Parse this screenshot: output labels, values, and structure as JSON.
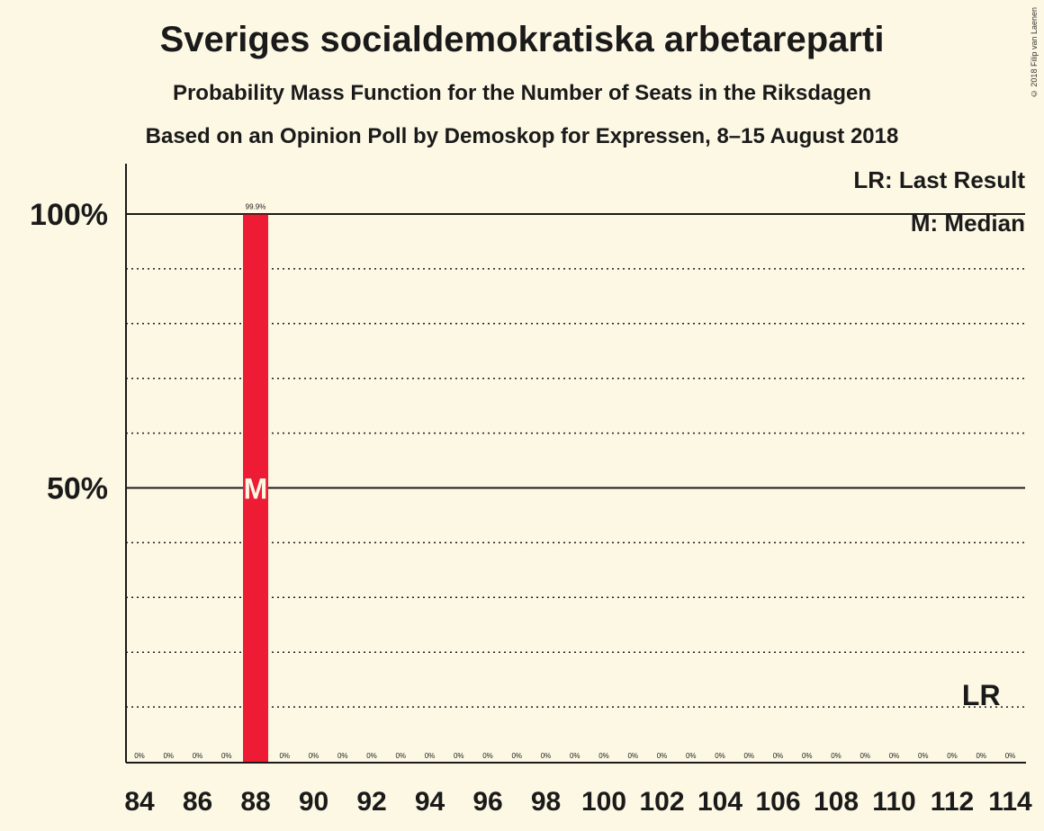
{
  "title": "Sveriges socialdemokratiska arbetareparti",
  "subtitle1": "Probability Mass Function for the Number of Seats in the Riksdagen",
  "subtitle2": "Based on an Opinion Poll by Demoskop for Expressen, 8–15 August 2018",
  "copyright": "© 2018 Filip van Laenen",
  "legend": {
    "last_result": "LR: Last Result",
    "median": "M: Median"
  },
  "colors": {
    "background": "#fdf8e4",
    "bar": "#ed1b34",
    "text": "#1a1a1a"
  },
  "chart_data": {
    "type": "bar",
    "xlabel": "",
    "ylabel": "",
    "ylim": [
      0,
      100
    ],
    "yticks": [
      {
        "value": 100,
        "label": "100%"
      },
      {
        "value": 50,
        "label": "50%"
      }
    ],
    "gridlines": [
      10,
      20,
      30,
      40,
      60,
      70,
      80,
      90
    ],
    "x_tick_labels": [
      "84",
      "86",
      "88",
      "90",
      "92",
      "94",
      "96",
      "98",
      "100",
      "102",
      "104",
      "106",
      "108",
      "110",
      "112",
      "114"
    ],
    "categories": [
      84,
      85,
      86,
      87,
      88,
      89,
      90,
      91,
      92,
      93,
      94,
      95,
      96,
      97,
      98,
      99,
      100,
      101,
      102,
      103,
      104,
      105,
      106,
      107,
      108,
      109,
      110,
      111,
      112,
      113,
      114
    ],
    "values": [
      0,
      0,
      0,
      0,
      99.9,
      0,
      0,
      0,
      0,
      0,
      0,
      0,
      0,
      0,
      0,
      0,
      0,
      0,
      0,
      0,
      0,
      0,
      0,
      0,
      0,
      0,
      0,
      0,
      0,
      0,
      0
    ],
    "data_labels": [
      "0%",
      "0%",
      "0%",
      "0%",
      "99.9%",
      "0%",
      "0%",
      "0%",
      "0%",
      "0%",
      "0%",
      "0%",
      "0%",
      "0%",
      "0%",
      "0%",
      "0%",
      "0%",
      "0%",
      "0%",
      "0%",
      "0%",
      "0%",
      "0%",
      "0%",
      "0%",
      "0%",
      "0%",
      "0%",
      "0%",
      "0%"
    ],
    "median_seat": 88,
    "median_label": "M",
    "last_result_seat": 113,
    "last_result_label": "LR",
    "last_result_level": 10
  }
}
